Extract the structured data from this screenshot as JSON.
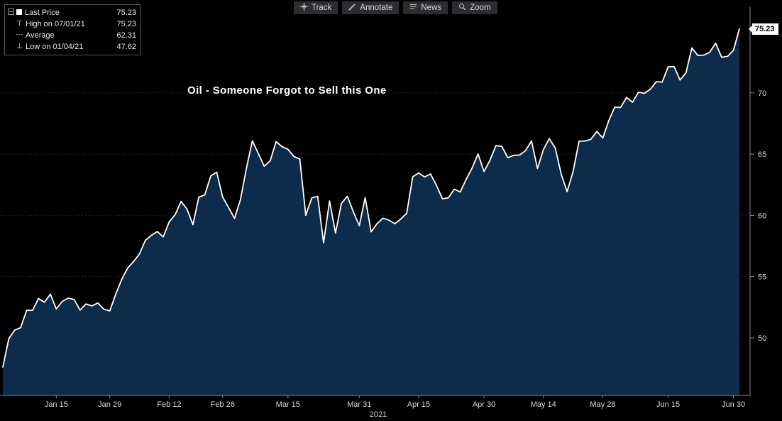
{
  "legend": {
    "rows": [
      {
        "icon": "last-price-square",
        "label": "Last Price",
        "value": "75.23"
      },
      {
        "icon": "high-marker",
        "label": "High on 07/01/21",
        "value": "75.23"
      },
      {
        "icon": "average-marker",
        "label": "Average",
        "value": "62.31"
      },
      {
        "icon": "low-marker",
        "label": "Low on 01/04/21",
        "value": "47.62"
      }
    ]
  },
  "toolbar": {
    "buttons": [
      {
        "icon": "track-crosshair-icon",
        "label": "Track"
      },
      {
        "icon": "annotate-pencil-icon",
        "label": "Annotate"
      },
      {
        "icon": "news-lines-icon",
        "label": "News"
      },
      {
        "icon": "zoom-magnifier-icon",
        "label": "Zoom"
      }
    ]
  },
  "chart_data": {
    "type": "area",
    "title": "Oil - Someone Forgot to Sell this One",
    "x_year_label": "2021",
    "last_price_label": "75.23",
    "legend_position": "top-left",
    "grid": true,
    "ylim": [
      45.3,
      77.0
    ],
    "yticks": [
      50,
      55,
      60,
      65,
      70
    ],
    "x_tick_labels": [
      {
        "label": "Jan 15",
        "index": 9
      },
      {
        "label": "Jan 29",
        "index": 18
      },
      {
        "label": "Feb 12",
        "index": 28
      },
      {
        "label": "Feb 26",
        "index": 37
      },
      {
        "label": "Mar 15",
        "index": 48
      },
      {
        "label": "Mar 31",
        "index": 60
      },
      {
        "label": "Apr 15",
        "index": 70
      },
      {
        "label": "Apr 30",
        "index": 81
      },
      {
        "label": "May 14",
        "index": 91
      },
      {
        "label": "May 28",
        "index": 101
      },
      {
        "label": "Jun 15",
        "index": 112
      },
      {
        "label": "Jun 30",
        "index": 123
      }
    ],
    "x_unit": "trading days 01/04/21 - 07/01/21",
    "series": [
      {
        "name": "Last Price",
        "values": [
          47.62,
          49.93,
          50.63,
          50.83,
          52.24,
          52.25,
          53.21,
          52.91,
          53.57,
          52.36,
          52.98,
          53.24,
          53.13,
          52.27,
          52.77,
          52.61,
          52.85,
          52.34,
          52.2,
          53.55,
          54.76,
          55.69,
          56.23,
          56.85,
          57.97,
          58.36,
          58.68,
          58.24,
          59.47,
          60.05,
          61.14,
          60.52,
          59.24,
          61.49,
          61.67,
          63.22,
          63.53,
          61.5,
          60.64,
          59.75,
          61.28,
          63.83,
          66.09,
          65.05,
          64.01,
          64.44,
          66.02,
          65.61,
          65.39,
          64.8,
          64.6,
          60.0,
          61.42,
          61.55,
          57.76,
          61.18,
          58.56,
          60.97,
          61.56,
          60.29,
          59.16,
          61.45,
          58.65,
          59.33,
          59.77,
          59.6,
          59.32,
          59.7,
          60.18,
          63.15,
          63.46,
          63.13,
          63.38,
          62.44,
          61.35,
          61.43,
          62.14,
          61.91,
          62.94,
          63.86,
          65.01,
          63.58,
          64.49,
          65.69,
          65.63,
          64.71,
          64.9,
          64.92,
          65.28,
          66.08,
          63.82,
          65.37,
          66.27,
          65.49,
          63.36,
          61.94,
          63.58,
          66.05,
          66.07,
          66.21,
          66.85,
          66.32,
          67.72,
          68.83,
          68.81,
          69.62,
          69.23,
          70.05,
          69.96,
          70.29,
          70.91,
          70.88,
          72.12,
          72.15,
          71.04,
          71.64,
          73.66,
          73.06,
          73.08,
          73.3,
          74.05,
          72.91,
          72.98,
          73.47,
          75.23
        ]
      }
    ],
    "stats": {
      "last": 75.23,
      "high": 75.23,
      "high_date": "07/01/21",
      "average": 62.31,
      "low": 47.62,
      "low_date": "01/04/21"
    },
    "colors": {
      "background": "#000000",
      "line": "#ffffff",
      "fill": "#0d2b4a",
      "grid": "#343434",
      "axis_line": "#8a8a8a",
      "axis_text": "#d9d9d9",
      "tag_bg": "#ffffff",
      "tag_text": "#000000"
    }
  }
}
